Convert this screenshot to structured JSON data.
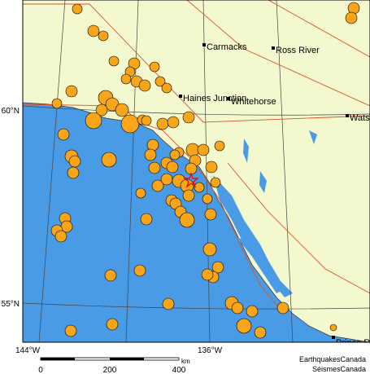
{
  "map": {
    "places": [
      "Carmacks",
      "Ross River",
      "Haines Junction",
      "Whitehorse",
      "Wats",
      "Prince R"
    ],
    "latitudes": [
      "60°N",
      "55°N"
    ],
    "longitudes": [
      "144°W",
      "136°W"
    ],
    "scale": {
      "ticks": [
        "0",
        "200",
        "400"
      ],
      "unit": "km"
    },
    "credits": [
      "EarthquakesCanada",
      "SéismesCanada"
    ]
  }
}
